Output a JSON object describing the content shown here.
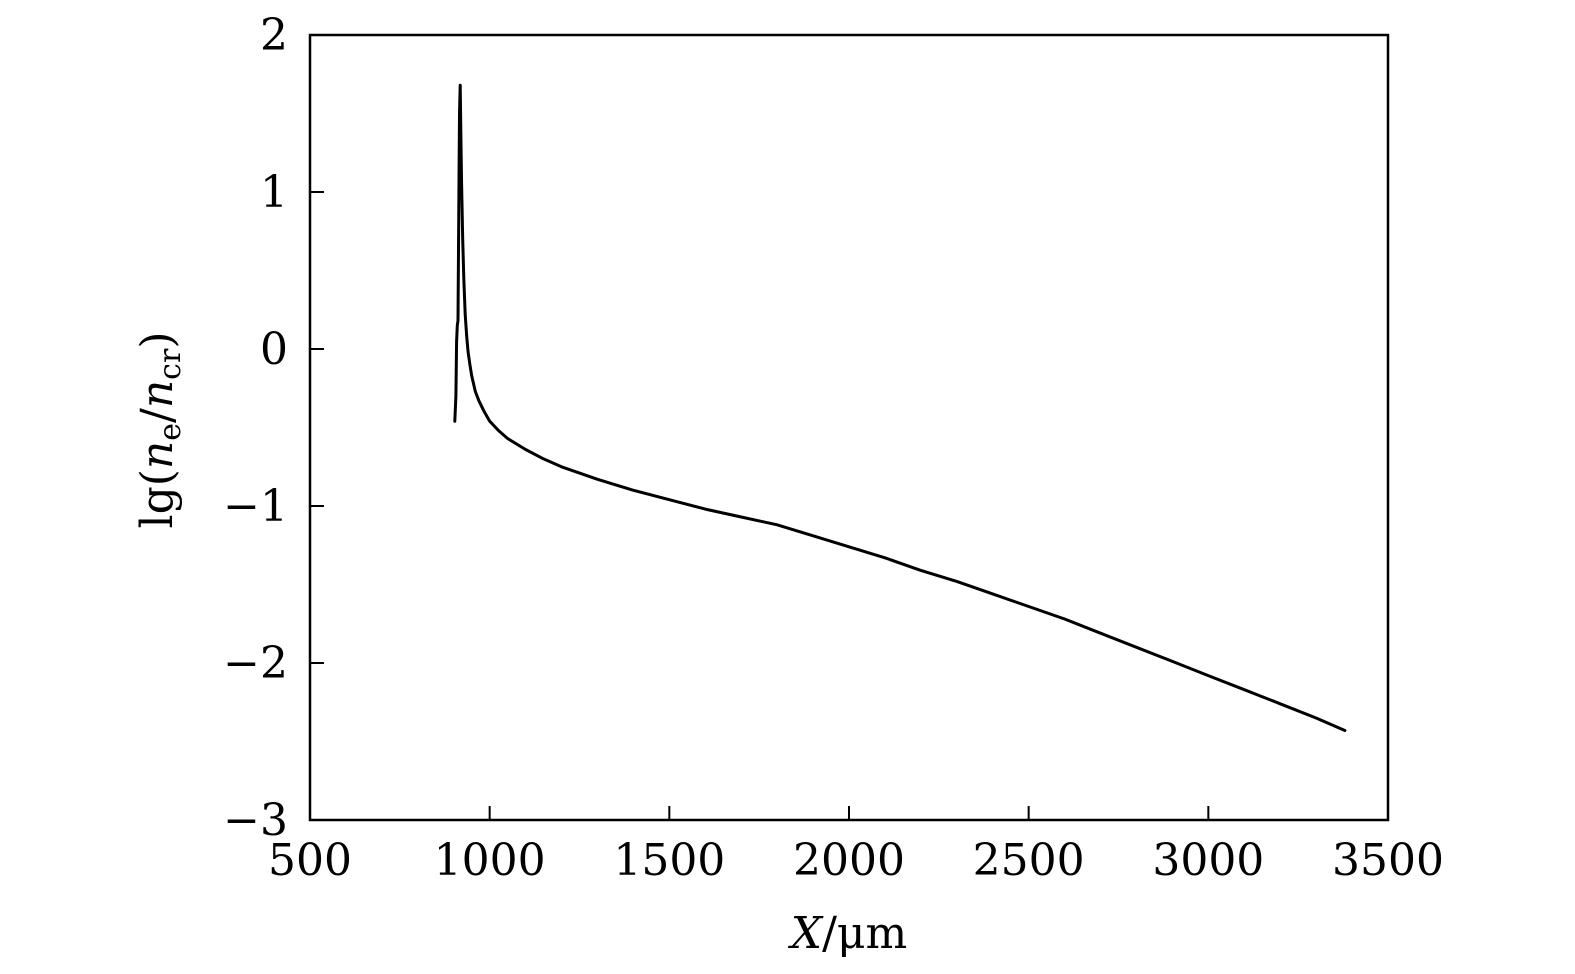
{
  "chart_data": {
    "type": "line",
    "title": "",
    "xlabel": "X/μm",
    "ylabel": "lg(ne/ncr)",
    "xlim": [
      500,
      3500
    ],
    "ylim": [
      -3,
      2
    ],
    "xticks": [
      500,
      1000,
      1500,
      2000,
      2500,
      3000,
      3500
    ],
    "xtick_labels": [
      "500",
      "1000",
      "1500",
      "2000",
      "2500",
      "3000",
      "3500"
    ],
    "yticks": [
      2,
      1,
      0,
      -1,
      -2,
      -3
    ],
    "ytick_labels": [
      "2",
      "1",
      "0",
      "−1",
      "−2",
      "−3"
    ],
    "grid": false,
    "legend": "none",
    "line_color": "#000000",
    "series": [
      {
        "x": [
          903,
          906,
          908,
          910,
          912,
          914,
          916,
          918,
          920,
          922,
          925,
          928,
          932,
          936,
          940,
          945,
          950,
          960,
          970,
          985,
          1000,
          1025,
          1050,
          1100,
          1150,
          1200,
          1300,
          1400,
          1500,
          1600,
          1700,
          1800,
          1900,
          2000,
          2100,
          2200,
          2300,
          2400,
          2500,
          2600,
          2700,
          2800,
          2900,
          3000,
          3100,
          3200,
          3300,
          3380
        ],
        "y": [
          -0.46,
          -0.3,
          0.05,
          0.15,
          0.18,
          0.9,
          1.5,
          1.68,
          1.35,
          1.05,
          0.7,
          0.45,
          0.22,
          0.08,
          -0.02,
          -0.1,
          -0.17,
          -0.27,
          -0.33,
          -0.4,
          -0.46,
          -0.52,
          -0.57,
          -0.64,
          -0.7,
          -0.75,
          -0.83,
          -0.9,
          -0.96,
          -1.02,
          -1.07,
          -1.12,
          -1.19,
          -1.26,
          -1.33,
          -1.41,
          -1.48,
          -1.56,
          -1.64,
          -1.72,
          -1.81,
          -1.9,
          -1.99,
          -2.08,
          -2.17,
          -2.26,
          -2.35,
          -2.43
        ]
      }
    ]
  }
}
